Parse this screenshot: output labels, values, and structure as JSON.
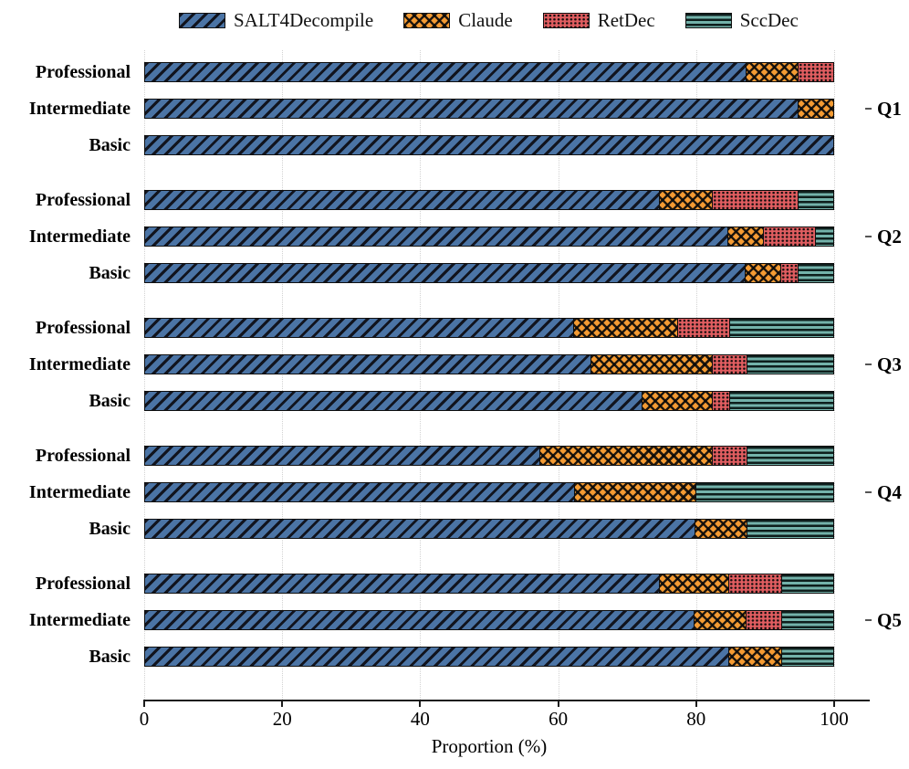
{
  "chart_data": {
    "type": "bar",
    "orientation": "horizontal",
    "stacked": true,
    "title": "",
    "xlabel": "Proportion (%)",
    "ylabel": "",
    "xlim": [
      0,
      100
    ],
    "xticks": [
      0,
      20,
      40,
      60,
      80,
      100
    ],
    "grid": "vertical-dotted",
    "legend_position": "top",
    "series_styles": [
      {
        "name": "SALT4Decompile",
        "color": "#4b74a5",
        "hatch": "diagonal"
      },
      {
        "name": "Claude",
        "color": "#f49b33",
        "hatch": "crosshatch"
      },
      {
        "name": "RetDec",
        "color": "#e05d60",
        "hatch": "dots"
      },
      {
        "name": "SccDec",
        "color": "#73b2aa",
        "hatch": "hlines"
      }
    ],
    "groups": [
      {
        "label": "Q1",
        "rows": [
          {
            "label": "Professional",
            "values": [
              87.5,
              7.5,
              5,
              0
            ]
          },
          {
            "label": "Intermediate",
            "values": [
              95,
              5,
              0,
              0
            ]
          },
          {
            "label": "Basic",
            "values": [
              100,
              0,
              0,
              0
            ]
          }
        ]
      },
      {
        "label": "Q2",
        "rows": [
          {
            "label": "Professional",
            "values": [
              75,
              7.5,
              12.5,
              5
            ]
          },
          {
            "label": "Intermediate",
            "values": [
              85,
              5,
              7.5,
              2.5
            ]
          },
          {
            "label": "Basic",
            "values": [
              87.5,
              5,
              2.5,
              5
            ]
          }
        ]
      },
      {
        "label": "Q3",
        "rows": [
          {
            "label": "Professional",
            "values": [
              62.5,
              15,
              7.5,
              15
            ]
          },
          {
            "label": "Intermediate",
            "values": [
              65,
              17.5,
              5,
              12.5
            ]
          },
          {
            "label": "Basic",
            "values": [
              72.5,
              10,
              2.5,
              15
            ]
          }
        ]
      },
      {
        "label": "Q4",
        "rows": [
          {
            "label": "Professional",
            "values": [
              57.5,
              25,
              5,
              12.5
            ]
          },
          {
            "label": "Intermediate",
            "values": [
              62.5,
              17.5,
              0,
              20
            ]
          },
          {
            "label": "Basic",
            "values": [
              80,
              7.5,
              0,
              12.5
            ]
          }
        ]
      },
      {
        "label": "Q5",
        "rows": [
          {
            "label": "Professional",
            "values": [
              75,
              10,
              7.5,
              7.5
            ]
          },
          {
            "label": "Intermediate",
            "values": [
              80,
              7.5,
              5,
              7.5
            ]
          },
          {
            "label": "Basic",
            "values": [
              85,
              7.5,
              0,
              7.5
            ]
          }
        ]
      }
    ]
  }
}
